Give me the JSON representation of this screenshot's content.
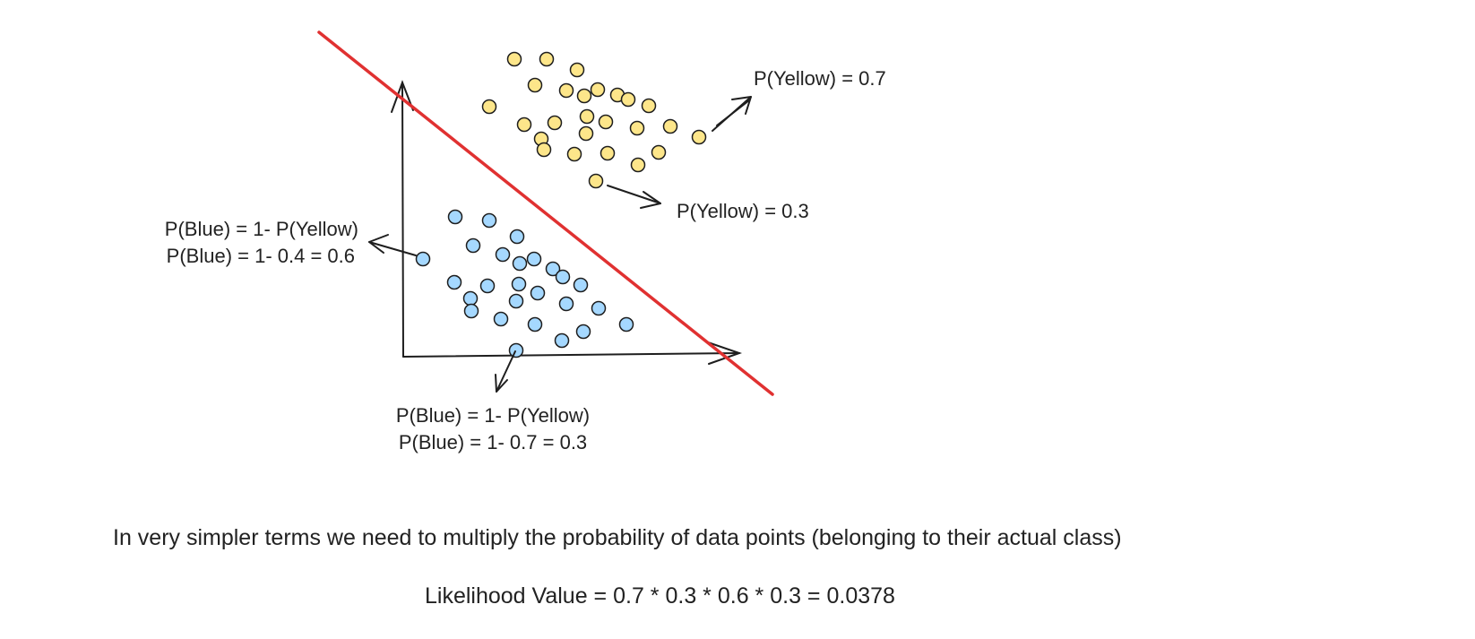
{
  "annotations": {
    "yellow_high": "P(Yellow) = 0.7",
    "yellow_low": "P(Yellow) = 0.3",
    "blue_left_line1": "P(Blue) = 1- P(Yellow)",
    "blue_left_line2": "P(Blue) = 1- 0.4 = 0.6",
    "blue_bottom_line1": "P(Blue) = 1- P(Yellow)",
    "blue_bottom_line2": "P(Blue) = 1- 0.7 = 0.3"
  },
  "explanation": "In very simpler terms we need to multiply the probability of data points (belonging to their actual class)",
  "likelihood": "Likelihood Value = 0.7 * 0.3 * 0.6 * 0.3 = 0.0378",
  "colors": {
    "yellow_point": "#fde68a",
    "blue_point": "#a5d8ff",
    "stroke": "#1e1e1e",
    "boundary": "#e03131"
  },
  "classes": [
    "yellow",
    "blue"
  ]
}
